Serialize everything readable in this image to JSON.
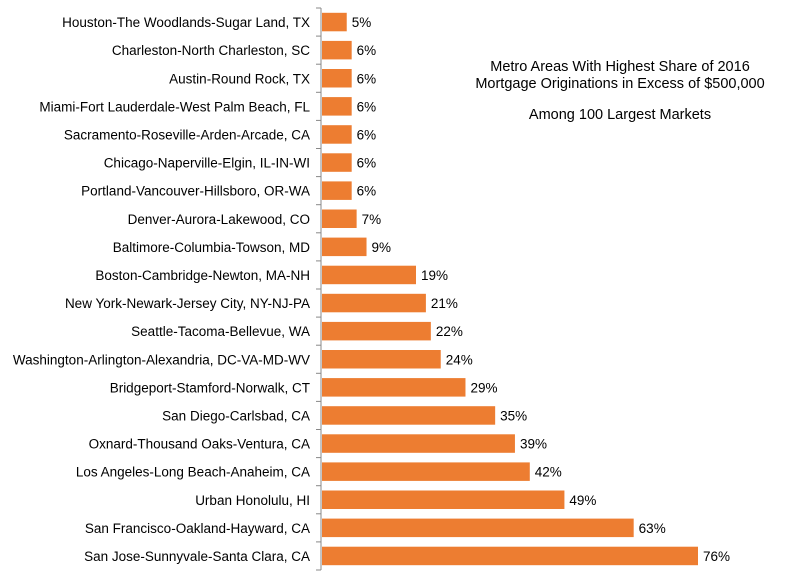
{
  "chart_data": {
    "type": "bar",
    "orientation": "horizontal",
    "title": "Metro Areas With Highest Share of 2016 Mortgage Originations in Excess of $500,000",
    "subtitle": "Among 100 Largest Markets",
    "value_suffix": "%",
    "xlim": [
      0,
      80
    ],
    "categories": [
      "Houston-The Woodlands-Sugar Land, TX",
      "Charleston-North Charleston, SC",
      "Austin-Round Rock, TX",
      "Miami-Fort Lauderdale-West Palm Beach, FL",
      "Sacramento-Roseville-Arden-Arcade, CA",
      "Chicago-Naperville-Elgin, IL-IN-WI",
      "Portland-Vancouver-Hillsboro, OR-WA",
      "Denver-Aurora-Lakewood, CO",
      "Baltimore-Columbia-Towson, MD",
      "Boston-Cambridge-Newton, MA-NH",
      "New York-Newark-Jersey City, NY-NJ-PA",
      "Seattle-Tacoma-Bellevue, WA",
      "Washington-Arlington-Alexandria, DC-VA-MD-WV",
      "Bridgeport-Stamford-Norwalk, CT",
      "San Diego-Carlsbad, CA",
      "Oxnard-Thousand Oaks-Ventura, CA",
      "Los Angeles-Long Beach-Anaheim, CA",
      "Urban Honolulu, HI",
      "San Francisco-Oakland-Hayward, CA",
      "San Jose-Sunnyvale-Santa Clara, CA"
    ],
    "values": [
      5,
      6,
      6,
      6,
      6,
      6,
      6,
      7,
      9,
      19,
      21,
      22,
      24,
      29,
      35,
      39,
      42,
      49,
      63,
      76
    ],
    "bar_color": "#ED7D31"
  },
  "title_block": {
    "line1": "Metro Areas With Highest Share of 2016 Mortgage Originations in Excess of $500,000",
    "line2": "Among 100 Largest Markets"
  }
}
